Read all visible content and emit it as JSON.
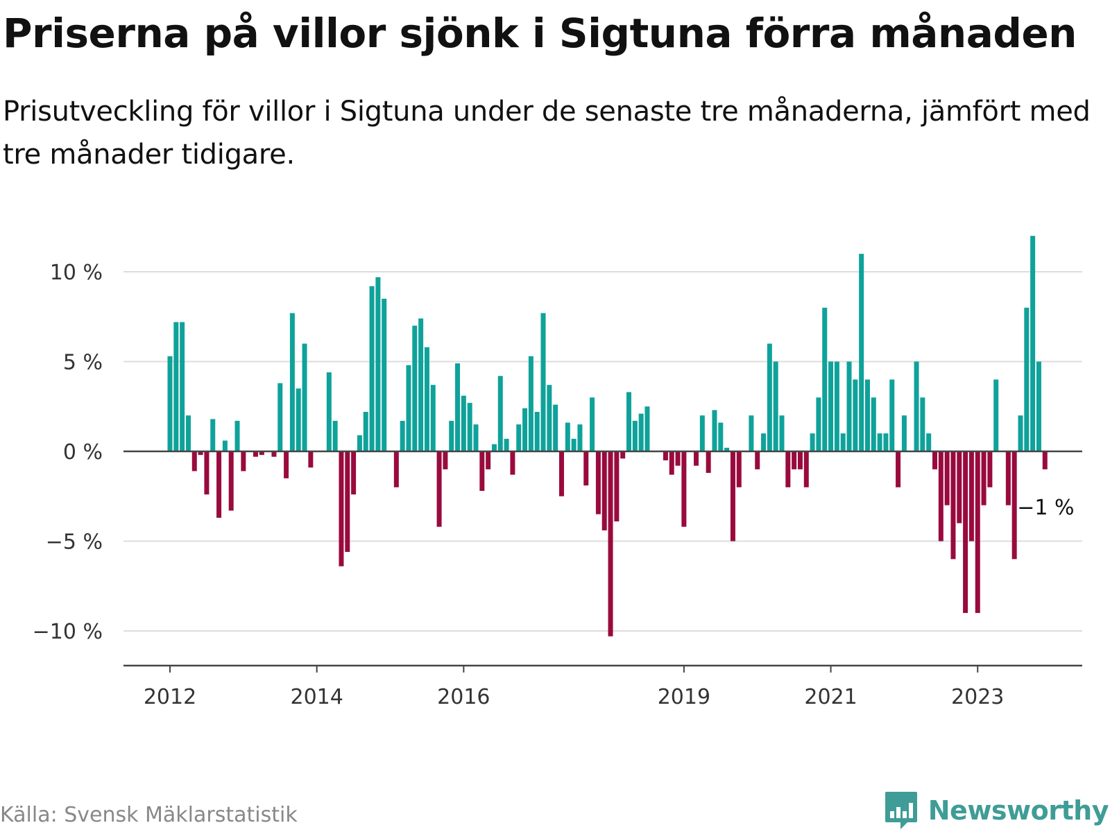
{
  "title": "Priserna på villor sjönk i Sigtuna förra månaden",
  "subtitle": "Prisutveckling för villor i Sigtuna under de senaste tre månaderna, jämfört med tre månader tidigare.",
  "source": "Källa: Svensk Mäklarstatistik",
  "brand": {
    "name": "Newsworthy",
    "logo_icon": "bar-chart-speech-bubble-icon"
  },
  "colors": {
    "positive": "#0ea29a",
    "negative": "#990a3d",
    "grid": "#dddddd",
    "axis": "#444444",
    "brand": "#3f9c96"
  },
  "chart_data": {
    "type": "bar",
    "title": "Priserna på villor sjönk i Sigtuna förra månaden",
    "xlabel": "",
    "ylabel": "",
    "ylim": [
      -12,
      13
    ],
    "yticks": [
      10,
      5,
      0,
      -5,
      -10
    ],
    "ytick_labels": [
      "10 %",
      "5 %",
      "0 %",
      "−5 %",
      "−10 %"
    ],
    "start": "2012-01",
    "xticks": [
      {
        "label": "2012",
        "index": 0
      },
      {
        "label": "2014",
        "index": 24
      },
      {
        "label": "2016",
        "index": 48
      },
      {
        "label": "2019",
        "index": 84
      },
      {
        "label": "2021",
        "index": 108
      },
      {
        "label": "2023",
        "index": 132
      }
    ],
    "last_value_label": "−1 %",
    "series": [
      {
        "name": "Prisutveckling (%)",
        "values": [
          5.3,
          7.2,
          7.2,
          2.0,
          -1.1,
          -0.2,
          -2.4,
          1.8,
          -3.7,
          0.6,
          -3.3,
          1.7,
          -1.1,
          0,
          -0.3,
          -0.2,
          0,
          -0.3,
          3.8,
          -1.5,
          7.7,
          3.5,
          6.0,
          -0.9,
          0,
          0,
          4.4,
          1.7,
          -6.4,
          -5.6,
          -2.4,
          0.9,
          2.2,
          9.2,
          9.7,
          8.5,
          0,
          -2.0,
          1.7,
          4.8,
          7.0,
          7.4,
          5.8,
          3.7,
          -4.2,
          -1.0,
          1.7,
          4.9,
          3.1,
          2.7,
          1.5,
          -2.2,
          -1.0,
          0.4,
          4.2,
          0.7,
          -1.3,
          1.5,
          2.4,
          5.3,
          2.2,
          7.7,
          3.7,
          2.6,
          -2.5,
          1.6,
          0.7,
          1.5,
          -1.9,
          3.0,
          -3.5,
          -4.4,
          -10.3,
          -3.9,
          -0.4,
          3.3,
          1.7,
          2.1,
          2.5,
          0,
          0,
          -0.5,
          -1.3,
          -0.8,
          -4.2,
          0,
          -0.8,
          2.0,
          -1.2,
          2.3,
          1.6,
          0.2,
          -5.0,
          -2.0,
          0,
          2.0,
          -1.0,
          1.0,
          6.0,
          5.0,
          2.0,
          -2.0,
          -1.0,
          -1.0,
          -2.0,
          1.0,
          3.0,
          8.0,
          5.0,
          5.0,
          1.0,
          5.0,
          4.0,
          11.0,
          4.0,
          3.0,
          1.0,
          1.0,
          4.0,
          -2.0,
          2.0,
          0,
          5.0,
          3.0,
          1.0,
          -1.0,
          -5.0,
          -3.0,
          -6.0,
          -4.0,
          -9.0,
          -5.0,
          -9.0,
          -3.0,
          -2.0,
          4.0,
          0,
          -3.0,
          -6.0,
          2.0,
          8.0,
          12.0,
          5.0,
          -1.0
        ]
      }
    ]
  }
}
